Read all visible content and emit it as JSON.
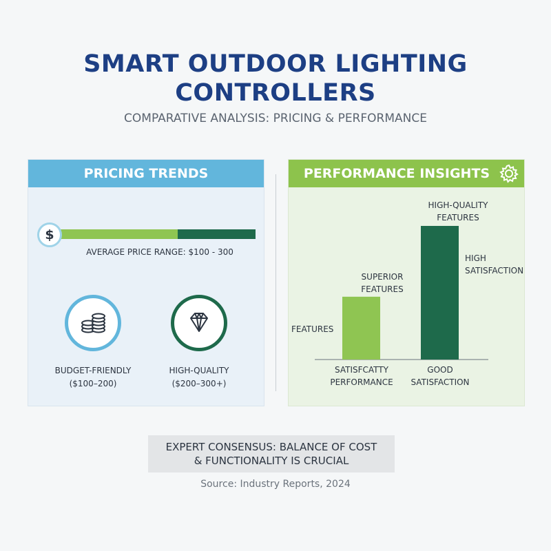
{
  "title_line1": "SMART OUTDOOR LIGHTING",
  "title_line2": "CONTROLLERS",
  "subtitle": "COMPARATIVE ANALYSIS: PRICING & PERFORMANCE",
  "colors": {
    "navy": "#1d3f84",
    "sky_blue": "#62b6dc",
    "light_green": "#8fc552",
    "dark_green": "#1e6a4b"
  },
  "pricing": {
    "header": "PRICING TRENDS",
    "dollar_icon": "dollar-icon",
    "dollar_symbol": "$",
    "bar_fill_fraction": 0.6,
    "avg_label": "AVERAGE PRICE RANGE: $100 - 300",
    "tiers": [
      {
        "icon": "coin-stack-icon",
        "line1": "BUDGET-FRIENDLY",
        "line2": "($100–200)"
      },
      {
        "icon": "diamond-icon",
        "line1": "HIGH-QUALITY",
        "line2": "($200–300+)"
      }
    ]
  },
  "performance": {
    "header": "PERFORMANCE INSIGHTS",
    "header_icon": "gear-icon",
    "features_label": "FEATURES",
    "high_satisfaction_line1": "HIGH",
    "high_satisfaction_line2": "SATISFACTION"
  },
  "chart_data": {
    "type": "bar",
    "bars": [
      {
        "top_label_line1": "SUPERIOR",
        "top_label_line2": "FEATURES",
        "bottom_label_line1": "SATISFCATTY",
        "bottom_label_line2": "PERFORMANCE",
        "relative_height": 0.47,
        "color": "#8fc552"
      },
      {
        "top_label_line1": "HIGH-QUALITY",
        "top_label_line2": "FEATURES",
        "bottom_label_line1": "GOOD",
        "bottom_label_line2": "SATISFACTION",
        "relative_height": 1.0,
        "color": "#1e6a4b"
      }
    ]
  },
  "footer": {
    "consensus_line1": "EXPERT CONSENSUS: BALANCE OF COST",
    "consensus_line2": "& FUNCTIONALITY IS CRUCIAL",
    "source": "Source: Industry Reports, 2024"
  }
}
